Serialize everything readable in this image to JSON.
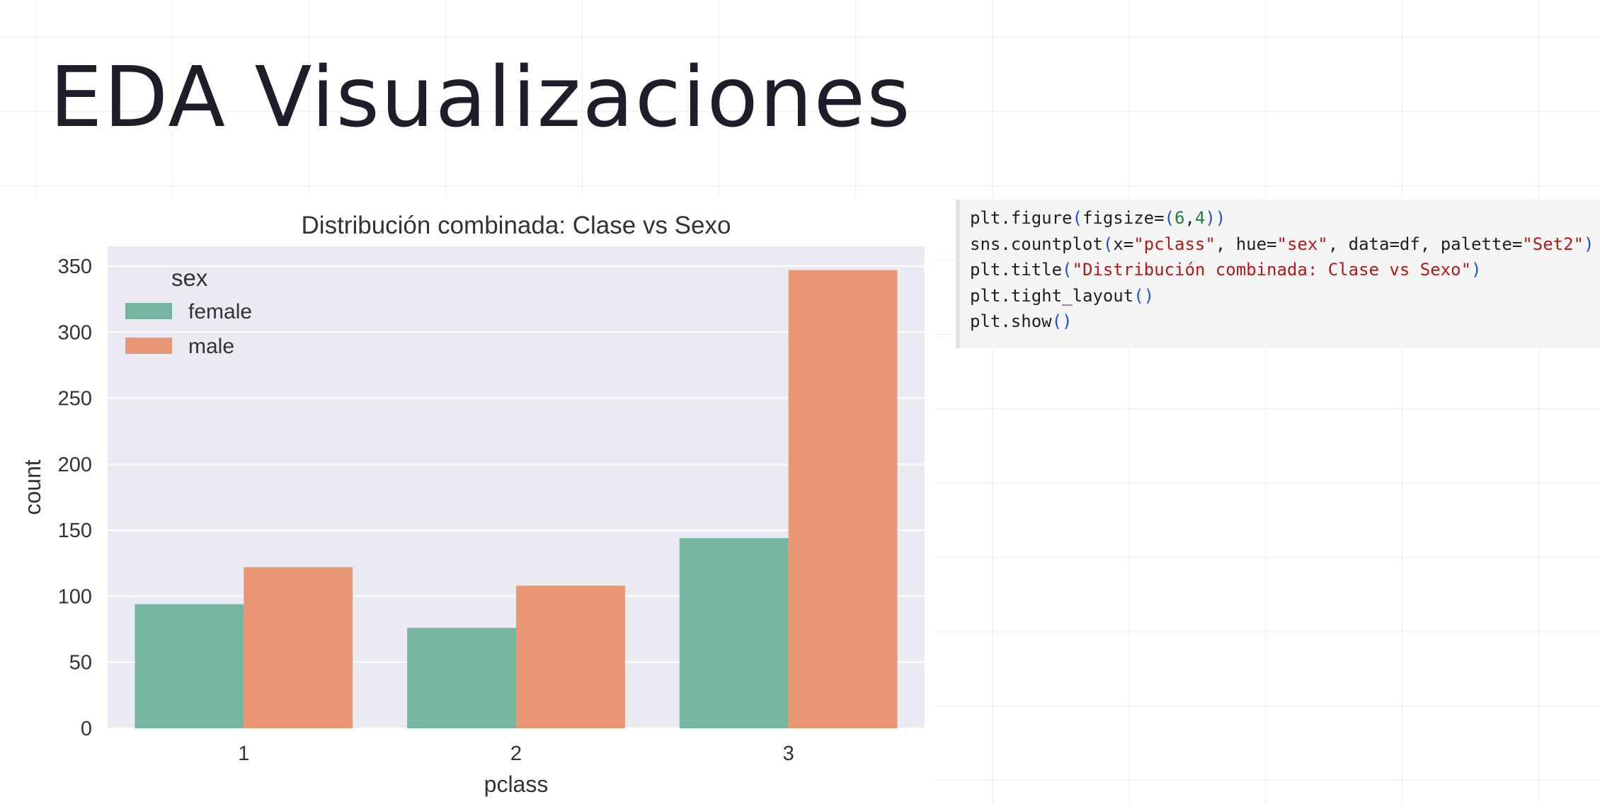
{
  "slide": {
    "title": "EDA Visualizaciones"
  },
  "chart_data": {
    "type": "bar",
    "title": "Distribución combinada: Clase vs Sexo",
    "xlabel": "pclass",
    "ylabel": "count",
    "categories": [
      "1",
      "2",
      "3"
    ],
    "series": [
      {
        "name": "female",
        "values": [
          94,
          76,
          144
        ],
        "color": "#74b6a0"
      },
      {
        "name": "male",
        "values": [
          122,
          108,
          347
        ],
        "color": "#e99675"
      }
    ],
    "ylim": [
      0,
      365
    ],
    "yticks": [
      "0",
      "50",
      "100",
      "150",
      "200",
      "250",
      "300",
      "350"
    ],
    "legend": {
      "title": "sex",
      "position": "top-left"
    },
    "grid": true,
    "background": "#eaeaf2"
  },
  "code": {
    "lines": [
      [
        {
          "t": "plt.figure",
          "c": "fn"
        },
        {
          "t": "(",
          "c": "paren"
        },
        {
          "t": "figsize=",
          "c": "kw"
        },
        {
          "t": "(",
          "c": "paren"
        },
        {
          "t": "6",
          "c": "num"
        },
        {
          "t": ",",
          "c": "kw"
        },
        {
          "t": "4",
          "c": "num"
        },
        {
          "t": "))",
          "c": "paren"
        }
      ],
      [
        {
          "t": "sns.countplot",
          "c": "fn"
        },
        {
          "t": "(",
          "c": "paren"
        },
        {
          "t": "x=",
          "c": "kw"
        },
        {
          "t": "\"pclass\"",
          "c": "str"
        },
        {
          "t": ", hue=",
          "c": "kw"
        },
        {
          "t": "\"sex\"",
          "c": "str"
        },
        {
          "t": ", data=df, palette=",
          "c": "kw"
        },
        {
          "t": "\"Set2\"",
          "c": "str"
        },
        {
          "t": ")",
          "c": "paren"
        }
      ],
      [
        {
          "t": "plt.title",
          "c": "fn"
        },
        {
          "t": "(",
          "c": "paren"
        },
        {
          "t": "\"Distribución combinada: Clase vs Sexo\"",
          "c": "str"
        },
        {
          "t": ")",
          "c": "paren"
        }
      ],
      [
        {
          "t": "plt.tight_layout",
          "c": "fn"
        },
        {
          "t": "()",
          "c": "paren"
        }
      ],
      [
        {
          "t": "plt.show",
          "c": "fn"
        },
        {
          "t": "()",
          "c": "paren"
        }
      ]
    ]
  }
}
